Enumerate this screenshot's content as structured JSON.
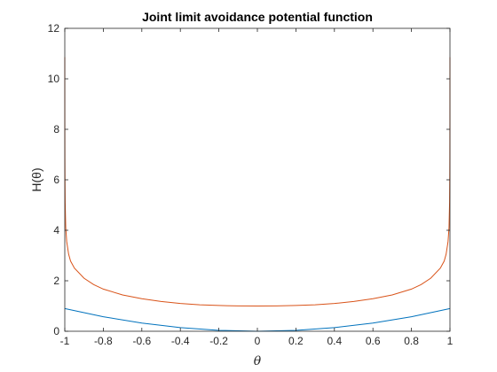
{
  "chart_data": {
    "type": "line",
    "title": "Joint limit avoidance potential function",
    "xlabel": "θ",
    "ylabel": "H(θ)",
    "xlim": [
      -1,
      1
    ],
    "ylim": [
      0,
      12
    ],
    "xticks": [
      -1,
      -0.8,
      -0.6,
      -0.4,
      -0.2,
      0,
      0.2,
      0.4,
      0.6,
      0.8,
      1
    ],
    "xtick_labels": [
      "-1",
      "-0.8",
      "-0.6",
      "-0.4",
      "-0.2",
      "0",
      "0.2",
      "0.4",
      "0.6",
      "0.8",
      "1"
    ],
    "yticks": [
      0,
      2,
      4,
      6,
      8,
      10,
      12
    ],
    "ytick_labels": [
      "0",
      "2",
      "4",
      "6",
      "8",
      "10",
      "12"
    ],
    "grid": false,
    "legend": "none",
    "series": [
      {
        "color": "#0072BD",
        "x": [
          -1,
          -0.8,
          -0.6,
          -0.4,
          -0.2,
          0,
          0.2,
          0.4,
          0.6,
          0.8,
          1
        ],
        "y": [
          0.9,
          0.576,
          0.324,
          0.144,
          0.036,
          0,
          0.036,
          0.144,
          0.324,
          0.576,
          0.9
        ]
      },
      {
        "color": "#D95319",
        "x": [
          -0.99995,
          -0.9999,
          -0.9998,
          -0.9995,
          -0.999,
          -0.998,
          -0.995,
          -0.99,
          -0.98,
          -0.97,
          -0.95,
          -0.9,
          -0.85,
          -0.8,
          -0.7,
          -0.6,
          -0.5,
          -0.4,
          -0.3,
          -0.2,
          -0.1,
          0,
          0.1,
          0.2,
          0.3,
          0.4,
          0.5,
          0.6,
          0.7,
          0.8,
          0.85,
          0.9,
          0.95,
          0.97,
          0.98,
          0.99,
          0.995,
          0.998,
          0.999,
          0.9995,
          0.9998,
          0.9999,
          0.99995
        ],
        "y": [
          10.86,
          9.5,
          8.25,
          6.9,
          6.0,
          5.1,
          4.1,
          3.55,
          3.05,
          2.78,
          2.5,
          2.1,
          1.85,
          1.67,
          1.44,
          1.29,
          1.18,
          1.1,
          1.05,
          1.02,
          1.005,
          1.0,
          1.005,
          1.02,
          1.05,
          1.1,
          1.18,
          1.29,
          1.44,
          1.67,
          1.85,
          2.1,
          2.5,
          2.78,
          3.05,
          3.55,
          4.1,
          5.1,
          6.0,
          6.9,
          8.25,
          9.5,
          10.86
        ]
      }
    ]
  }
}
